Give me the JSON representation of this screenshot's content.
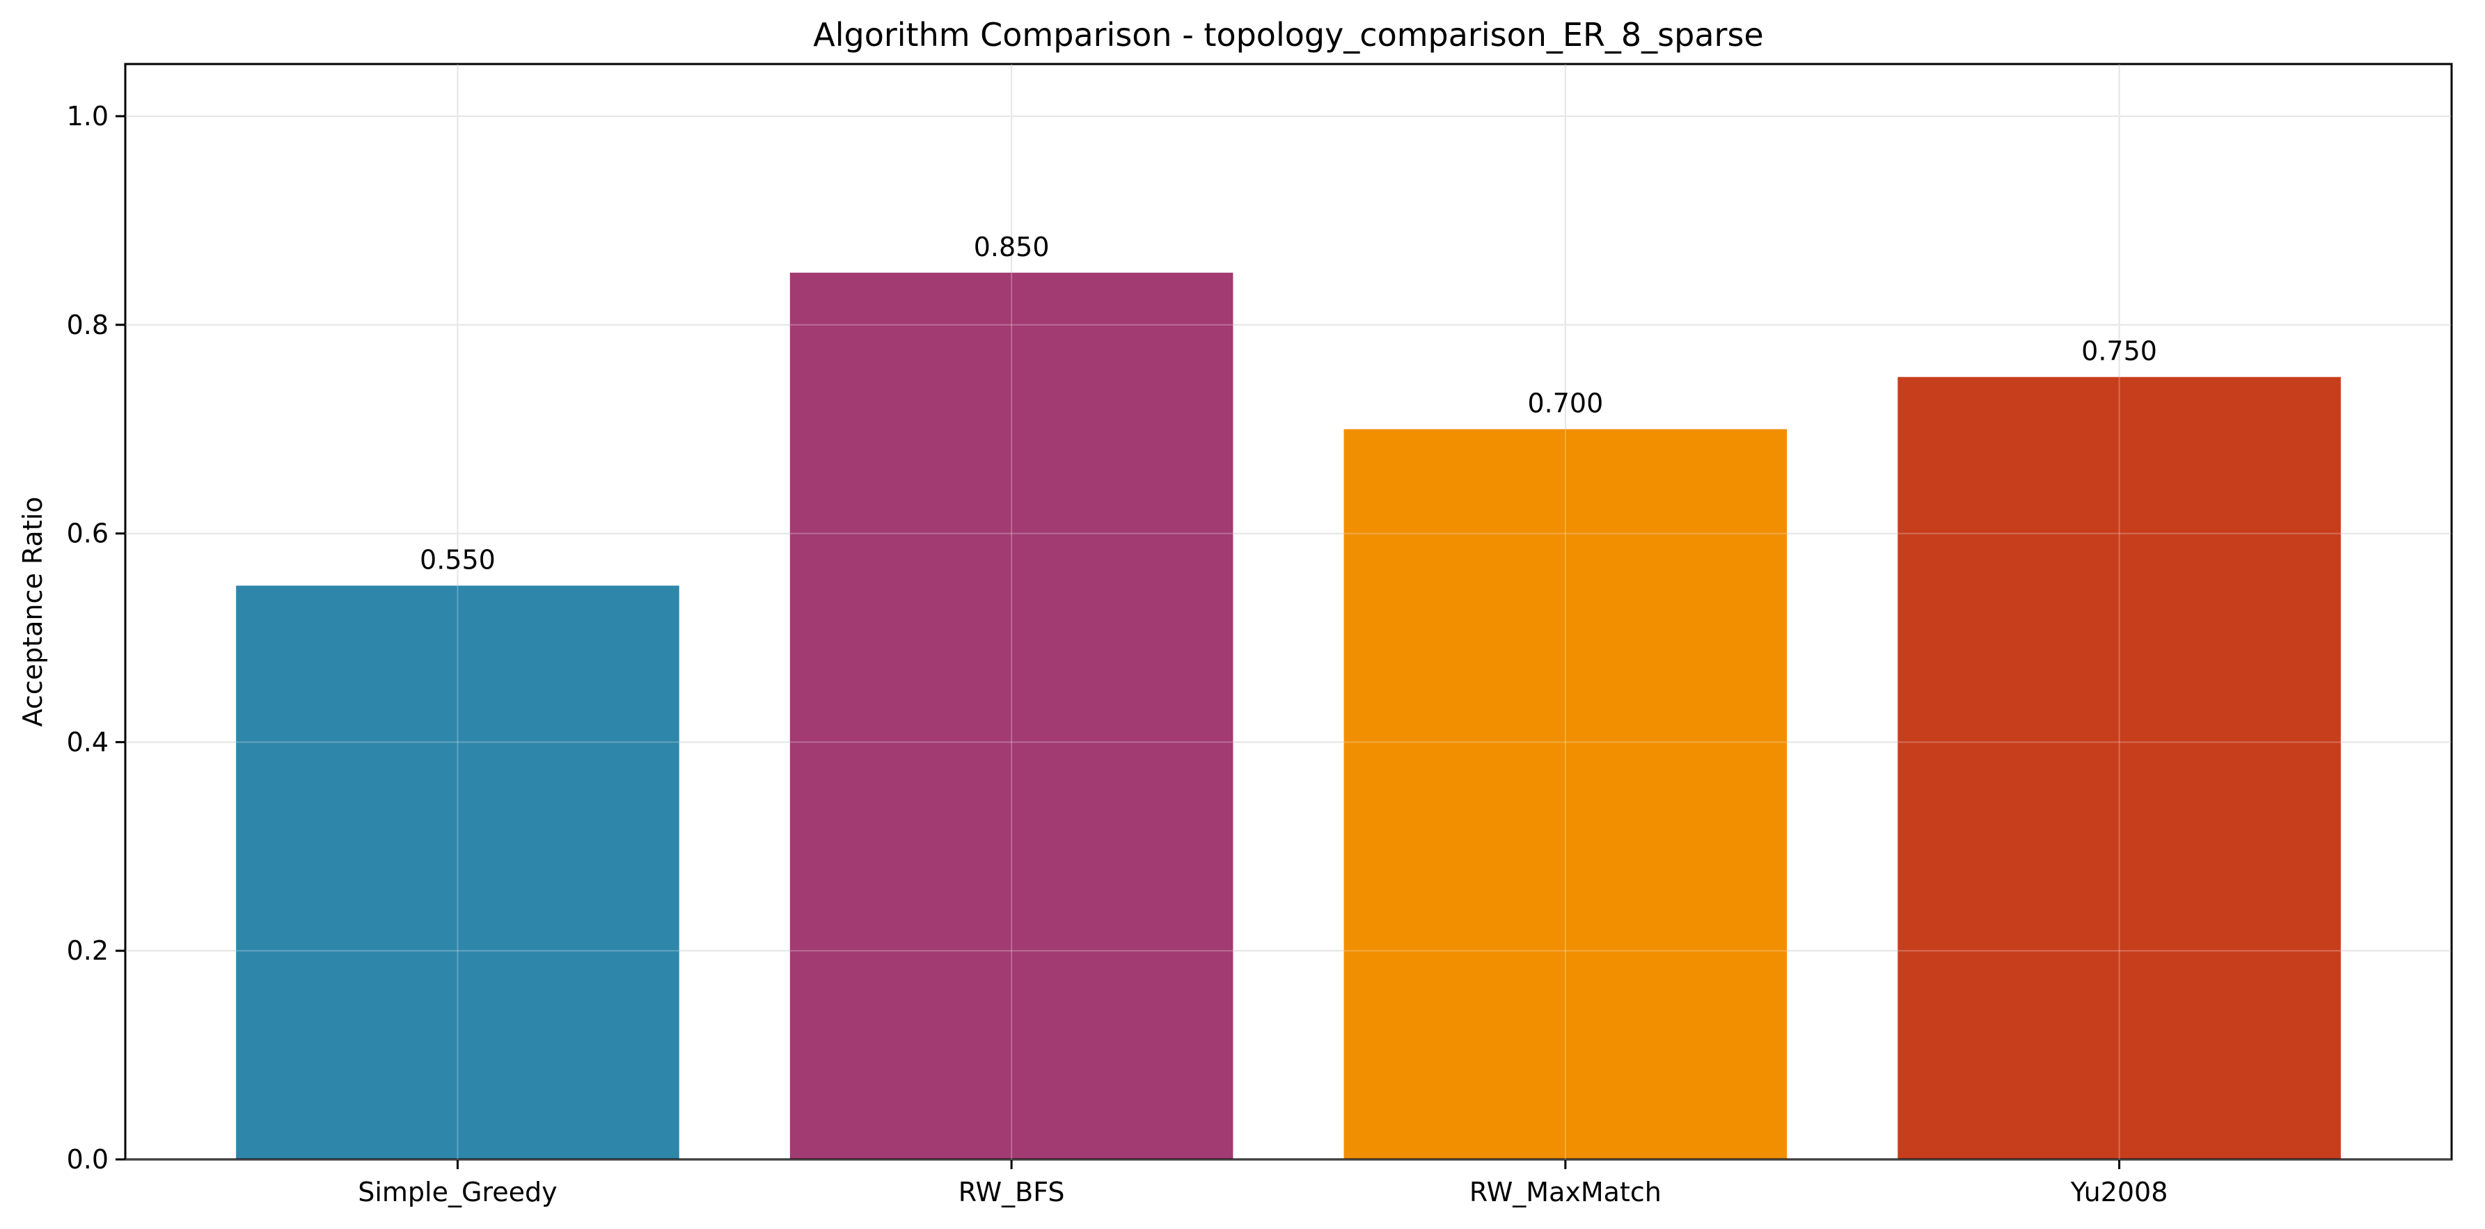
{
  "chart_data": {
    "type": "bar",
    "title": "Algorithm Comparison - topology_comparison_ER_8_sparse",
    "xlabel": "",
    "ylabel": "Acceptance Ratio",
    "categories": [
      "Simple_Greedy",
      "RW_BFS",
      "RW_MaxMatch",
      "Yu2008"
    ],
    "values": [
      0.55,
      0.85,
      0.7,
      0.75
    ],
    "value_labels": [
      "0.550",
      "0.850",
      "0.700",
      "0.750"
    ],
    "colors": [
      "#2e86ab",
      "#a23b72",
      "#f18f01",
      "#c73e1d"
    ],
    "ylim": [
      0,
      1.05
    ],
    "yticks": [
      0.0,
      0.2,
      0.4,
      0.6,
      0.8,
      1.0
    ],
    "ytick_labels": [
      "0.0",
      "0.2",
      "0.4",
      "0.6",
      "0.8",
      "1.0"
    ],
    "grid": true,
    "legend": "none"
  }
}
